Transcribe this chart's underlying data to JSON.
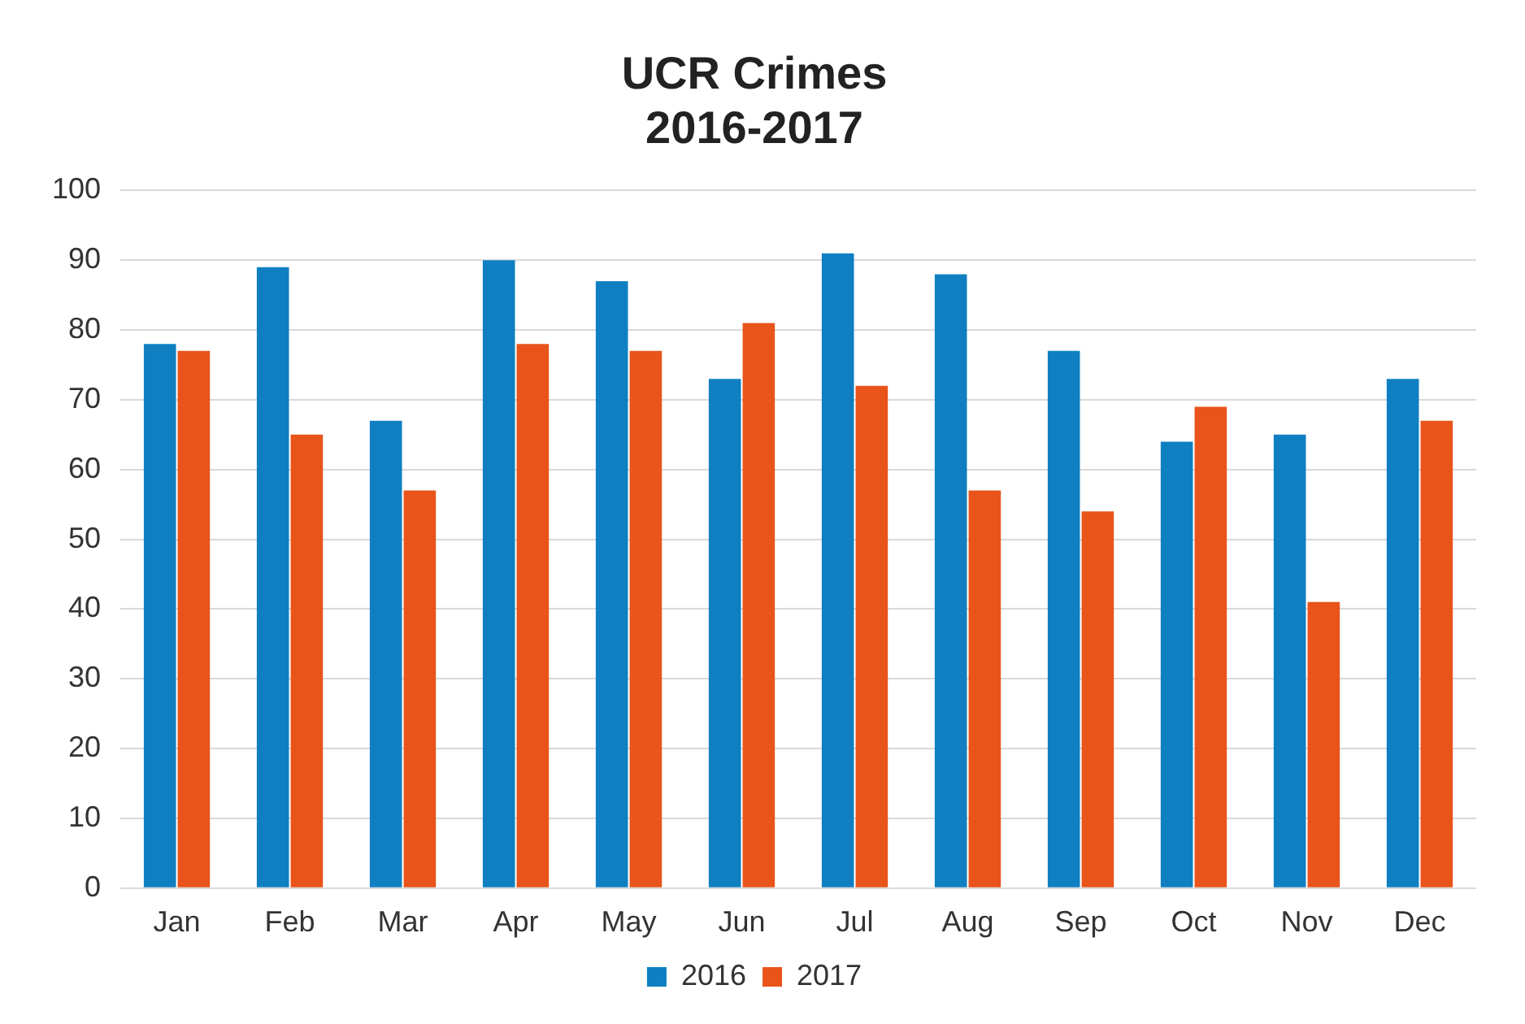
{
  "chart_data": {
    "type": "bar",
    "title": [
      "UCR Crimes",
      "2016-2017"
    ],
    "categories": [
      "Jan",
      "Feb",
      "Mar",
      "Apr",
      "May",
      "Jun",
      "Jul",
      "Aug",
      "Sep",
      "Oct",
      "Nov",
      "Dec"
    ],
    "series": [
      {
        "name": "2016",
        "color": "#0f7fc2",
        "values": [
          78,
          89,
          67,
          90,
          87,
          73,
          91,
          88,
          77,
          64,
          65,
          73
        ]
      },
      {
        "name": "2017",
        "color": "#e8541a",
        "values": [
          77,
          65,
          57,
          78,
          77,
          81,
          72,
          57,
          54,
          69,
          41,
          67
        ]
      }
    ],
    "ylim": [
      0,
      100
    ],
    "yticks": [
      0,
      10,
      20,
      30,
      40,
      50,
      60,
      70,
      80,
      90,
      100
    ],
    "grid": "y",
    "legend": "bottom"
  }
}
